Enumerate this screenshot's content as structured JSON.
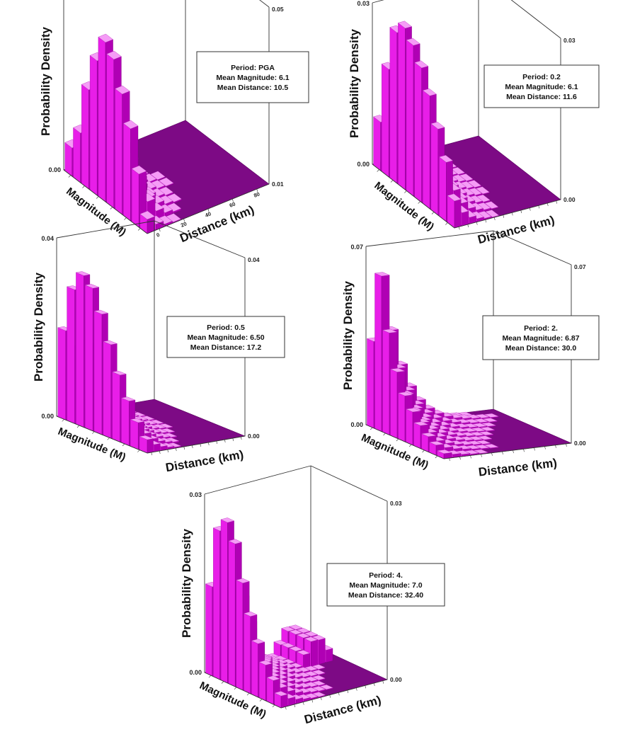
{
  "figure": {
    "colors": {
      "bar_front": "#e81ee8",
      "bar_side": "#b000b4",
      "bar_top": "#f59cf6",
      "floor": "#7d0a85",
      "frame": "#333333"
    }
  },
  "chart_data": [
    {
      "type": "bar",
      "bar_layout": "3d-histogram",
      "zlabel": "Probability Density",
      "xlabel": "Magnitude (M)",
      "ylabel": "Distance (km)",
      "zlim": [
        0.0,
        0.05
      ],
      "z_ticks": [
        "0.00",
        "0.05"
      ],
      "z_ticks_right": [
        "0.01",
        "0.05"
      ],
      "distance_ticks": [
        "0",
        "20",
        "40",
        "60",
        "80"
      ],
      "magnitude_ticks": [
        "",
        "",
        "",
        "",
        "",
        ""
      ],
      "legend": [
        "Period: PGA",
        "Mean Magnitude: 6.1",
        "Mean Distance: 10.5"
      ],
      "magnitude_profile": [
        0.004,
        0.015,
        0.026,
        0.034,
        0.042,
        0.045,
        0.038,
        0.028,
        0.014,
        0.008
      ],
      "distance_decay": 1.6
    },
    {
      "type": "bar",
      "bar_layout": "3d-histogram",
      "zlabel": "Probability Density",
      "xlabel": "Magnitude (M)",
      "ylabel": "Distance (km)",
      "zlim": [
        0.0,
        0.03
      ],
      "z_ticks": [
        "0.00",
        "0.03"
      ],
      "z_ticks_right": [
        "0.00",
        "0.03"
      ],
      "distance_ticks": [
        "",
        "",
        "",
        "",
        "",
        "",
        "",
        "",
        "",
        "",
        "",
        ""
      ],
      "magnitude_ticks": [
        "",
        "",
        "",
        "",
        "",
        ""
      ],
      "legend": [
        "Period: 0.2",
        "Mean Magnitude: 6.1",
        "Mean Distance: 11.6"
      ],
      "magnitude_profile": [
        0.005,
        0.011,
        0.016,
        0.021,
        0.025,
        0.028,
        0.03,
        0.028,
        0.02,
        0.009
      ],
      "distance_decay": 1.3
    },
    {
      "type": "bar",
      "bar_layout": "3d-histogram",
      "zlabel": "Probability Density",
      "xlabel": "Magnitude (M)",
      "ylabel": "Distance (km)",
      "zlim": [
        0.0,
        0.04
      ],
      "z_ticks": [
        "0.00",
        "0.04"
      ],
      "z_ticks_right": [
        "0.00",
        "0.04"
      ],
      "distance_ticks": [
        "",
        "",
        "",
        "",
        "",
        "",
        "",
        "",
        "",
        "",
        "",
        ""
      ],
      "magnitude_ticks": [
        "",
        "",
        "",
        "",
        "",
        ""
      ],
      "legend": [
        "Period: 0.5",
        "Mean Magnitude: 6.50",
        "Mean Distance: 17.2"
      ],
      "magnitude_profile": [
        0.003,
        0.006,
        0.01,
        0.015,
        0.021,
        0.027,
        0.032,
        0.034,
        0.03,
        0.02
      ],
      "distance_decay": 1.1
    },
    {
      "type": "bar",
      "bar_layout": "3d-histogram",
      "zlabel": "Probability Density",
      "xlabel": "Magnitude (M)",
      "ylabel": "Distance (km)",
      "zlim": [
        0.0,
        0.07
      ],
      "z_ticks": [
        "0.00",
        "0.07"
      ],
      "z_ticks_right": [
        "0.00",
        "0.07"
      ],
      "distance_ticks": [
        "",
        "",
        "",
        "",
        "",
        "",
        "",
        "",
        "",
        "",
        "",
        ""
      ],
      "magnitude_ticks": [
        "",
        "",
        "",
        "",
        "",
        ""
      ],
      "legend": [
        "Period: 2.",
        "Mean Magnitude: 6.87",
        "Mean Distance: 30.0"
      ],
      "magnitude_profile": [
        0.002,
        0.004,
        0.006,
        0.009,
        0.013,
        0.018,
        0.026,
        0.04,
        0.061,
        0.034
      ],
      "distance_decay": 0.8
    },
    {
      "type": "bar",
      "bar_layout": "3d-histogram",
      "zlabel": "Probability Density",
      "xlabel": "Magnitude (M)",
      "ylabel": "Distance (km)",
      "zlim": [
        0.0,
        0.03
      ],
      "z_ticks": [
        "0.00",
        "0.03"
      ],
      "z_ticks_right": [
        "0.00",
        "0.03"
      ],
      "distance_ticks": [
        "",
        "",
        "",
        "",
        "",
        "",
        "",
        "",
        "",
        "",
        "",
        ""
      ],
      "magnitude_ticks": [
        "",
        "",
        "",
        "",
        "",
        ""
      ],
      "legend": [
        "Period: 4.",
        "Mean Magnitude: 7.0",
        "Mean Distance: 32.40"
      ],
      "magnitude_profile": [
        0.002,
        0.004,
        0.006,
        0.009,
        0.013,
        0.018,
        0.024,
        0.027,
        0.025,
        0.015
      ],
      "distance_decay": 0.9,
      "secondary_bump": 0.005
    }
  ]
}
